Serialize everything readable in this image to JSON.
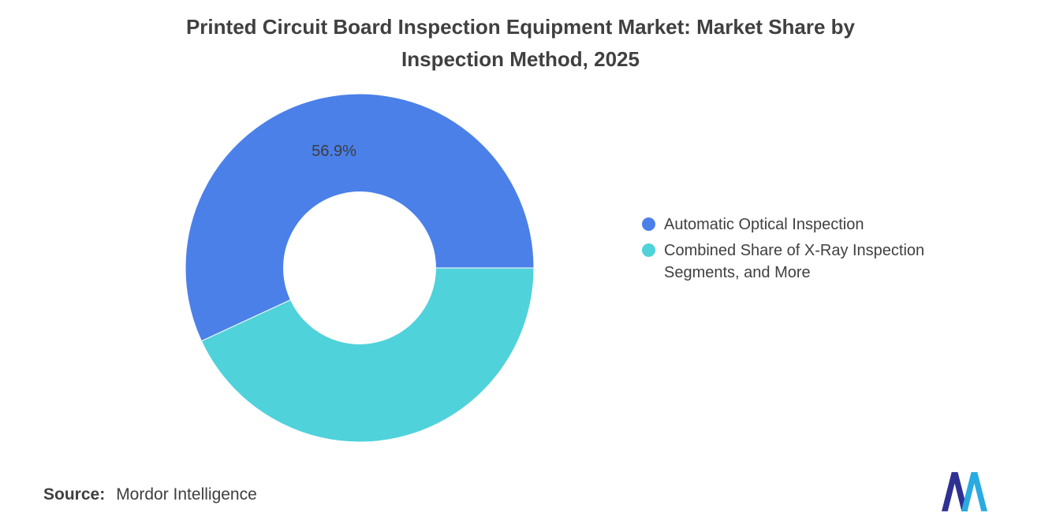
{
  "title": {
    "lines": [
      "Printed Circuit Board Inspection Equipment Market: Market Share by",
      "Inspection Method, 2025"
    ]
  },
  "chart_data": {
    "type": "pie",
    "subtype": "donut",
    "title": "Printed Circuit Board Inspection Equipment Market: Market Share by Inspection Method, 2025",
    "series": [
      {
        "name": "Automatic Optical Inspection",
        "value": 56.9,
        "color": "#4B80E9",
        "data_label": "56.9%"
      },
      {
        "name": "Combined Share of X-Ray Inspection Segments, and More",
        "value": 43.1,
        "color": "#50D2DA",
        "data_label": ""
      }
    ],
    "legend_position": "right",
    "layout": {
      "start_angle_deg": 90,
      "direction": "counterclockwise",
      "outer_radius": 220,
      "inner_radius": 96,
      "label_radius": 150,
      "label_color": "#3d3d3d",
      "label_font_size": 20
    }
  },
  "source": {
    "prefix": "Source:",
    "text": "Mordor Intelligence"
  },
  "logo": {
    "name": "mordor-intelligence-logo",
    "colors": {
      "dark": "#2E3192",
      "light": "#29ABE2"
    }
  }
}
